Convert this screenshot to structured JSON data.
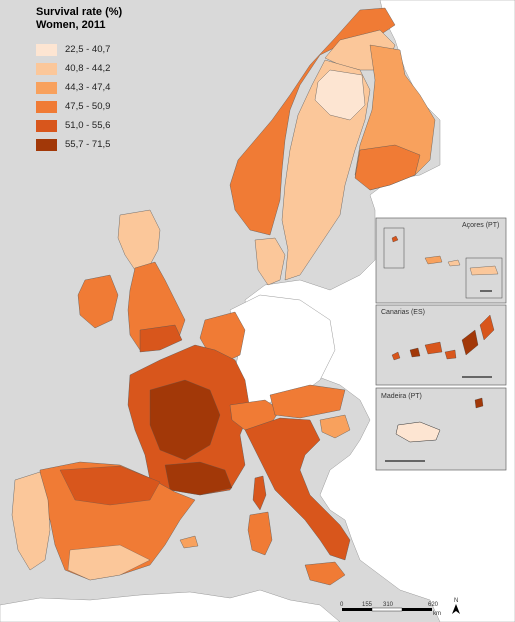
{
  "legend": {
    "title_line1": "Survival rate (%)",
    "title_line2": "Women, 2011",
    "classes": [
      {
        "label": "22,5 - 40,7",
        "color": "#fde5d2"
      },
      {
        "label": "40,8 - 44,2",
        "color": "#fbc79a"
      },
      {
        "label": "44,3 - 47,4",
        "color": "#f8a15d"
      },
      {
        "label": "47,5 - 50,9",
        "color": "#f07b35"
      },
      {
        "label": "51,0 - 55,6",
        "color": "#d8561c"
      },
      {
        "label": "55,7 - 71,5",
        "color": "#a23808"
      }
    ]
  },
  "insets": {
    "azores": "Açores (PT)",
    "canarias": "Canarias (ES)",
    "madeira": "Madeira (PT)"
  },
  "scale_bar": {
    "ticks": [
      "0",
      "155",
      "310",
      "620"
    ],
    "unit": "km"
  },
  "north_arrow": "N",
  "colors": {
    "sea": "#d9d9d9",
    "no_data_land": "#ffffff",
    "border": "#555555"
  }
}
